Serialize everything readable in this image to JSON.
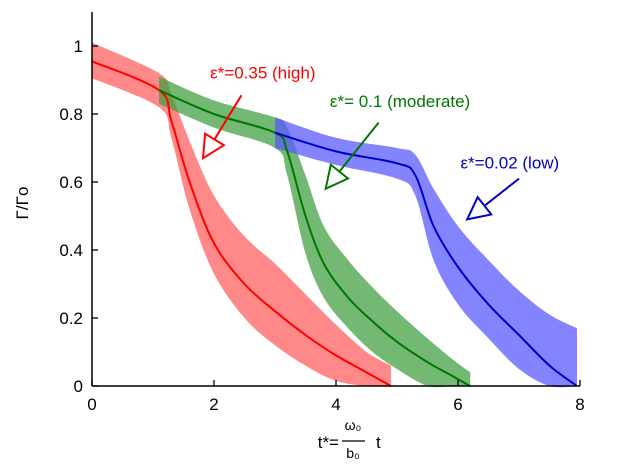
{
  "chart_data": {
    "type": "line",
    "title": "",
    "xlabel_prefix": "t*=",
    "xlabel_num": "ω₀",
    "xlabel_den": "b₀",
    "xlabel_suffix": "t",
    "ylabel": "Γ/Γo",
    "xlim": [
      0,
      8
    ],
    "ylim": [
      0,
      1.1
    ],
    "xticks": [
      "0",
      "2",
      "4",
      "6",
      "8"
    ],
    "yticks": [
      "0",
      "0.2",
      "0.4",
      "0.6",
      "0.8",
      "1"
    ],
    "grid": false,
    "legend": "none",
    "series": [
      {
        "name": "ε*=0.35 (high)",
        "color": "#ff0000",
        "band_color": "#ff5a5a",
        "x": [
          0,
          1.1,
          1.3,
          1.6,
          2.0,
          2.5,
          3.0,
          3.5,
          4.0,
          4.5,
          4.9
        ],
        "y": [
          0.955,
          0.87,
          0.78,
          0.6,
          0.42,
          0.3,
          0.22,
          0.15,
          0.09,
          0.04,
          0
        ],
        "lower": [
          0.905,
          0.82,
          0.73,
          0.52,
          0.33,
          0.2,
          0.12,
          0.06,
          0.015,
          0,
          0
        ],
        "upper": [
          1.01,
          0.92,
          0.86,
          0.72,
          0.56,
          0.44,
          0.36,
          0.27,
          0.18,
          0.1,
          0.06
        ],
        "label_x": 2.8,
        "label_y": 0.905,
        "arrow_from": [
          2.45,
          0.855
        ],
        "arrow_to": [
          1.82,
          0.67
        ]
      },
      {
        "name": "ε*= 0.1 (moderate)",
        "color": "#007700",
        "band_color": "#3d9e3d",
        "x": [
          1.1,
          2.0,
          3.0,
          3.2,
          3.5,
          3.8,
          4.2,
          4.6,
          5.0,
          5.5,
          5.9,
          6.2
        ],
        "y": [
          0.87,
          0.8,
          0.745,
          0.69,
          0.5,
          0.36,
          0.26,
          0.19,
          0.13,
          0.07,
          0.03,
          0
        ],
        "lower": [
          0.83,
          0.76,
          0.7,
          0.62,
          0.39,
          0.26,
          0.17,
          0.1,
          0.05,
          0,
          0,
          0
        ],
        "upper": [
          0.91,
          0.84,
          0.79,
          0.76,
          0.62,
          0.47,
          0.37,
          0.29,
          0.22,
          0.14,
          0.08,
          0.04
        ],
        "label_x": 5.05,
        "label_y": 0.82,
        "arrow_from": [
          4.7,
          0.775
        ],
        "arrow_to": [
          3.83,
          0.58
        ]
      },
      {
        "name": "ε*=0.02 (low)",
        "color": "#0000cc",
        "band_color": "#5555ff",
        "x": [
          3.0,
          4.0,
          5.0,
          5.3,
          5.6,
          6.0,
          6.5,
          7.0,
          7.5,
          7.95
        ],
        "y": [
          0.745,
          0.69,
          0.655,
          0.62,
          0.47,
          0.35,
          0.24,
          0.15,
          0.06,
          0
        ],
        "lower": [
          0.7,
          0.65,
          0.61,
          0.56,
          0.37,
          0.24,
          0.14,
          0.05,
          0,
          0
        ],
        "upper": [
          0.79,
          0.73,
          0.7,
          0.68,
          0.58,
          0.47,
          0.37,
          0.28,
          0.21,
          0.17
        ],
        "label_x": 6.85,
        "label_y": 0.64,
        "arrow_from": [
          7.0,
          0.61
        ],
        "arrow_to": [
          6.15,
          0.49
        ]
      }
    ]
  }
}
